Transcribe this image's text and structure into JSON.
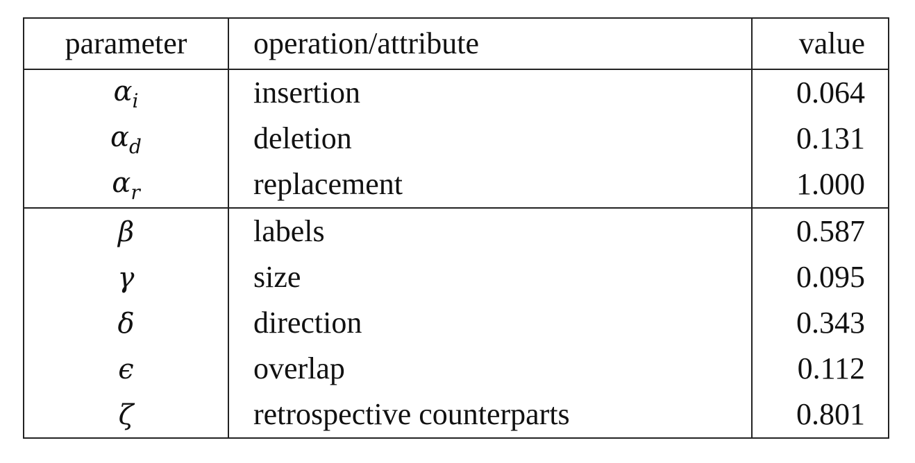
{
  "table": {
    "headers": {
      "parameter": "parameter",
      "operation": "operation/attribute",
      "value": "value"
    },
    "rows": [
      {
        "symbol": "α",
        "sub": "i",
        "operation": "insertion",
        "value": "0.064"
      },
      {
        "symbol": "α",
        "sub": "d",
        "operation": "deletion",
        "value": "0.131"
      },
      {
        "symbol": "α",
        "sub": "r",
        "operation": "replacement",
        "value": "1.000"
      },
      {
        "symbol": "β",
        "sub": "",
        "operation": "labels",
        "value": "0.587"
      },
      {
        "symbol": "γ",
        "sub": "",
        "operation": "size",
        "value": "0.095"
      },
      {
        "symbol": "δ",
        "sub": "",
        "operation": "direction",
        "value": "0.343"
      },
      {
        "symbol": "ϵ",
        "sub": "",
        "operation": "overlap",
        "value": "0.112"
      },
      {
        "symbol": "ζ",
        "sub": "",
        "operation": "retrospective counterparts",
        "value": "0.801"
      }
    ]
  }
}
